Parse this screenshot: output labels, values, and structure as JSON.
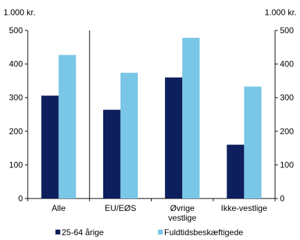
{
  "chart_data": {
    "type": "bar",
    "categories": [
      [
        "Alle"
      ],
      [
        "EU/EØS"
      ],
      [
        "Øvrige",
        "vestlige"
      ],
      [
        "Ikke-vestlige"
      ]
    ],
    "series": [
      {
        "name": "25-64 årige",
        "values": [
          306,
          264,
          360,
          160
        ],
        "color": "#0d1f5c"
      },
      {
        "name": "Fuldtidsbeskæftigede",
        "values": [
          427,
          374,
          478,
          333
        ],
        "color": "#7ac6e6"
      }
    ],
    "ylim": [
      0,
      500
    ],
    "yticks": [
      0,
      100,
      200,
      300,
      400,
      500
    ],
    "unit_left": "1.000 kr.",
    "unit_right": "1.000 kr.",
    "grid": false,
    "legend_position": "bottom",
    "separator_after_category": 0
  }
}
